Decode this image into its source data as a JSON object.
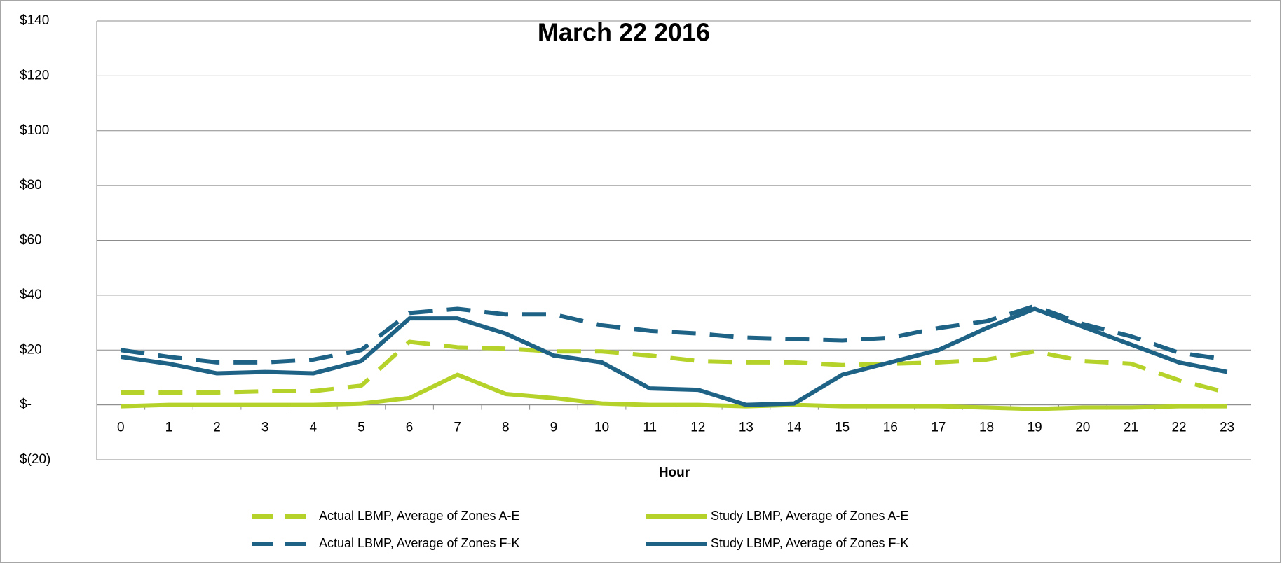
{
  "chart_data": {
    "type": "line",
    "title": "March 22 2016",
    "x_label": "Hour",
    "categories": [
      "0",
      "1",
      "2",
      "3",
      "4",
      "5",
      "6",
      "7",
      "8",
      "9",
      "10",
      "11",
      "12",
      "13",
      "14",
      "15",
      "16",
      "17",
      "18",
      "19",
      "20",
      "21",
      "22",
      "23"
    ],
    "series": [
      {
        "name": "Actual LBMP, Average of Zones A-E",
        "color": "#b5d22a",
        "style": "dashed",
        "values": [
          4.5,
          4.5,
          4.5,
          5,
          5,
          7,
          23,
          21,
          20.5,
          19.5,
          19.5,
          18,
          16,
          15.5,
          15.5,
          14.5,
          15,
          15.5,
          16.5,
          19.5,
          16,
          15,
          9,
          4.5
        ]
      },
      {
        "name": "Study  LBMP, Average of Zones A-E",
        "color": "#b5d22a",
        "style": "solid",
        "values": [
          -0.5,
          0,
          0,
          0,
          0,
          0.5,
          2.5,
          11,
          4,
          2.5,
          0.5,
          0,
          0,
          -0.5,
          0,
          -0.5,
          -0.5,
          -0.5,
          -1,
          -1.5,
          -1,
          -1,
          -0.5,
          -0.5
        ]
      },
      {
        "name": "Actual LBMP, Average of Zones F-K",
        "color": "#1e6286",
        "style": "dashed",
        "values": [
          20,
          17.5,
          15.5,
          15.5,
          16.5,
          20,
          33.5,
          35,
          33,
          33,
          29,
          27,
          26,
          24.5,
          24,
          23.5,
          24.5,
          28,
          30.5,
          36,
          29.5,
          25,
          19,
          16.5
        ]
      },
      {
        "name": "Study LBMP, Average of Zones F-K",
        "color": "#1e6286",
        "style": "solid",
        "values": [
          17.5,
          15,
          11.5,
          12,
          11.5,
          16,
          31.5,
          31.5,
          26,
          18,
          15.5,
          6,
          5.5,
          0,
          0.5,
          11,
          15.5,
          20,
          28,
          35,
          28.5,
          22,
          15.5,
          12
        ]
      }
    ],
    "ylim": [
      -20,
      140
    ],
    "yticks": [
      {
        "value": -20,
        "label": "$(20)"
      },
      {
        "value": 0,
        "label": "$-"
      },
      {
        "value": 20,
        "label": "$20"
      },
      {
        "value": 40,
        "label": "$40"
      },
      {
        "value": 60,
        "label": "$60"
      },
      {
        "value": 80,
        "label": "$80"
      },
      {
        "value": 100,
        "label": "$100"
      },
      {
        "value": 120,
        "label": "$120"
      },
      {
        "value": 140,
        "label": "$140"
      }
    ],
    "grid": true
  }
}
